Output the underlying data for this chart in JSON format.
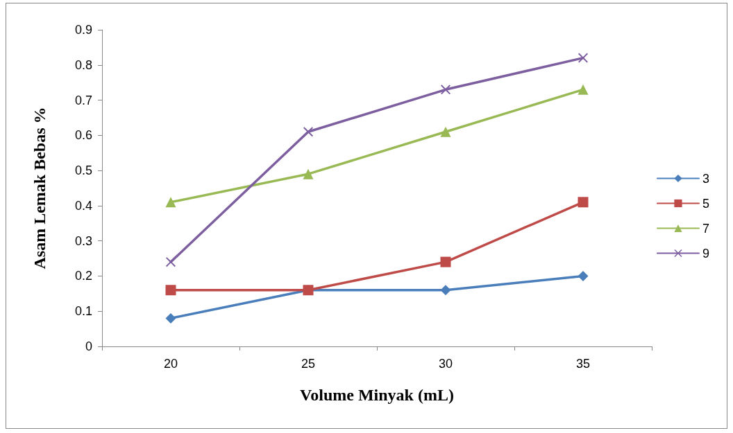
{
  "chart_data": {
    "type": "line",
    "xlabel": "Volume Minyak (mL)",
    "ylabel": "Asam Lemak Bebas %",
    "categories": [
      "20",
      "25",
      "30",
      "35"
    ],
    "series": [
      {
        "name": "3",
        "color": "#4a7ebb",
        "marker": "diamond",
        "values": [
          0.08,
          0.16,
          0.16,
          0.2
        ]
      },
      {
        "name": "5",
        "color": "#be4b48",
        "marker": "square",
        "values": [
          0.16,
          0.16,
          0.24,
          0.41
        ]
      },
      {
        "name": "7",
        "color": "#98b954",
        "marker": "triangle",
        "values": [
          0.41,
          0.49,
          0.61,
          0.73
        ]
      },
      {
        "name": "9",
        "color": "#7d5fa0",
        "marker": "cross",
        "values": [
          0.24,
          0.61,
          0.73,
          0.82
        ]
      }
    ],
    "ylim": [
      0,
      0.9
    ],
    "yticks": [
      0,
      0.1,
      0.2,
      0.3,
      0.4,
      0.5,
      0.6,
      0.7,
      0.8,
      0.9
    ],
    "grid": false,
    "legend": "right"
  }
}
